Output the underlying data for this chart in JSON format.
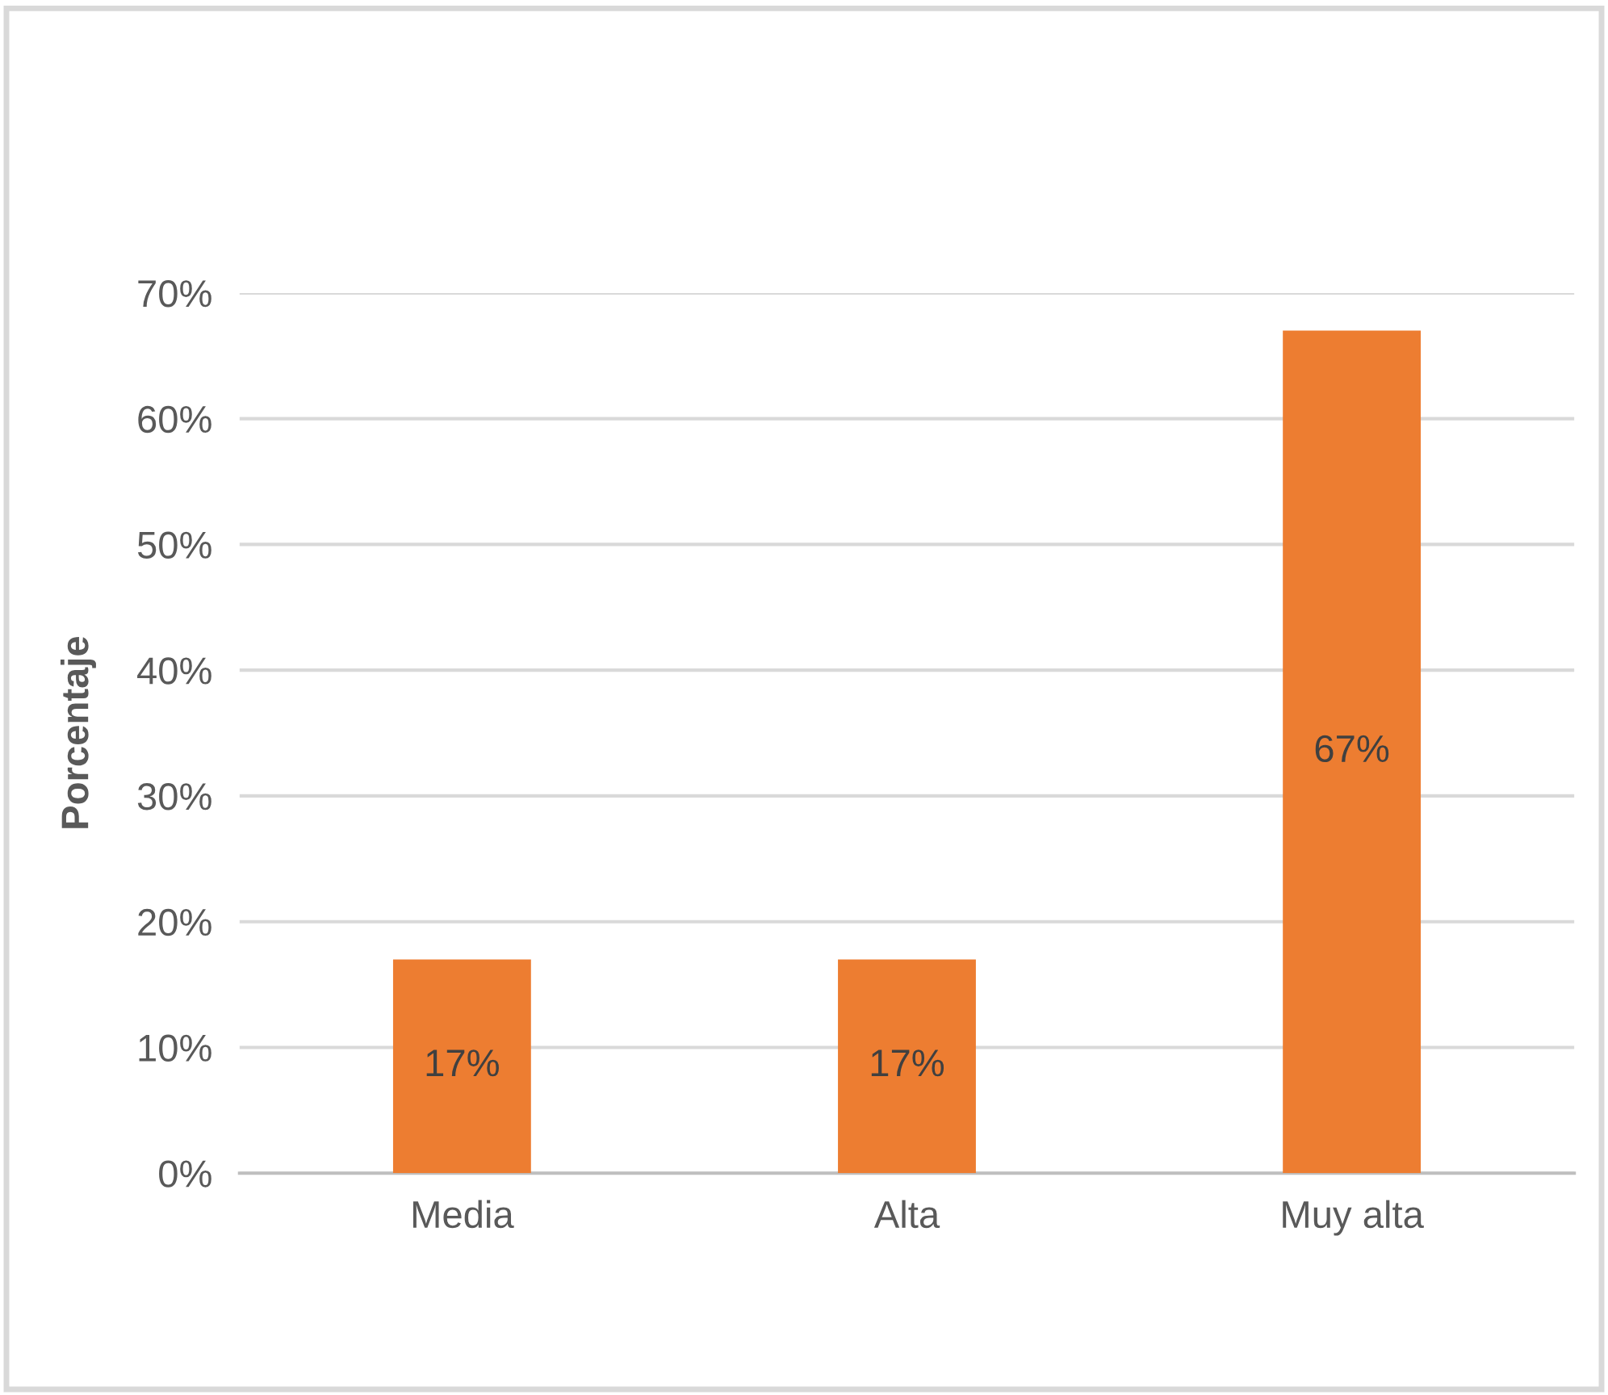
{
  "chart_data": {
    "type": "bar",
    "ylabel": "Porcentaje",
    "categories": [
      "Media",
      "Alta",
      "Muy alta"
    ],
    "values": [
      17,
      17,
      67
    ],
    "value_labels": [
      "17%",
      "17%",
      "67%"
    ],
    "color": "#ed7d31",
    "ylim": [
      0,
      70
    ],
    "yticks": [
      {
        "value": 0,
        "label": "0%"
      },
      {
        "value": 10,
        "label": "10%"
      },
      {
        "value": 20,
        "label": "20%"
      },
      {
        "value": 30,
        "label": "30%"
      },
      {
        "value": 40,
        "label": "40%"
      },
      {
        "value": 50,
        "label": "50%"
      },
      {
        "value": 60,
        "label": "60%"
      },
      {
        "value": 70,
        "label": "70%"
      }
    ],
    "grid": "y",
    "legend": false
  }
}
